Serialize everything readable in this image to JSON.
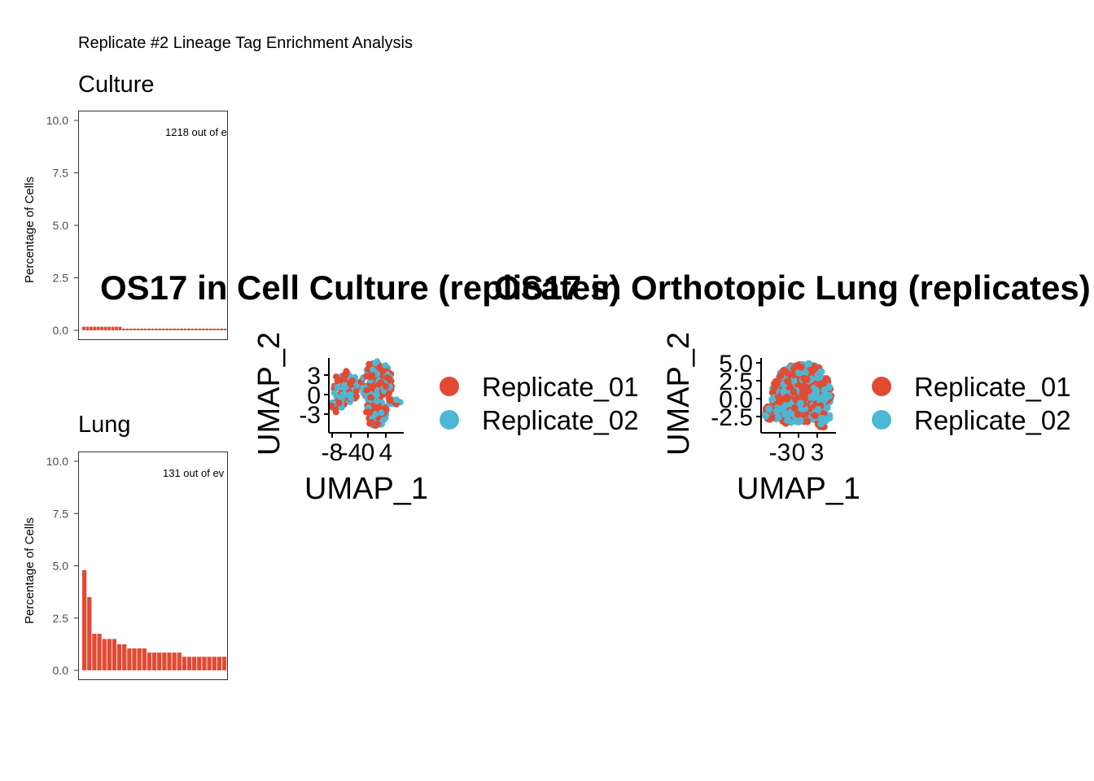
{
  "page": {
    "title": "Replicate #2 Lineage Tag Enrichment Analysis"
  },
  "colors": {
    "bar": "#E24A33",
    "replicate_01": "#E24A33",
    "replicate_02": "#4DB8D4",
    "panel_border": "#333333"
  },
  "chart_data": [
    {
      "type": "bar",
      "title": "Culture",
      "ylabel": "Percentage of Cells",
      "xlabel": "",
      "ylim": [
        0,
        10
      ],
      "yticks": [
        "0.0",
        "2.5",
        "5.0",
        "7.5",
        "10.0"
      ],
      "annotation": "1218 out of e",
      "values": [
        0.17,
        0.17,
        0.17,
        0.17,
        0.17,
        0.17,
        0.17,
        0.17,
        0.17,
        0.17,
        0.17,
        0.08,
        0.08,
        0.08,
        0.08,
        0.08,
        0.08,
        0.08,
        0.08,
        0.08,
        0.08,
        0.08,
        0.08,
        0.08,
        0.08,
        0.08,
        0.08,
        0.08,
        0.08,
        0.08,
        0.08,
        0.08,
        0.08,
        0.08,
        0.08,
        0.08,
        0.08,
        0.08,
        0.08,
        0.08
      ]
    },
    {
      "type": "bar",
      "title": "Lung",
      "ylabel": "Percentage of Cells",
      "xlabel": "",
      "ylim": [
        0,
        10
      ],
      "yticks": [
        "0.0",
        "2.5",
        "5.0",
        "7.5",
        "10.0"
      ],
      "annotation": "131 out of ev",
      "values": [
        4.8,
        3.5,
        1.75,
        1.75,
        1.5,
        1.5,
        1.5,
        1.25,
        1.25,
        1.05,
        1.05,
        1.05,
        1.05,
        0.85,
        0.85,
        0.85,
        0.85,
        0.85,
        0.85,
        0.85,
        0.65,
        0.65,
        0.65,
        0.65,
        0.65,
        0.65,
        0.65,
        0.65,
        0.65
      ]
    },
    {
      "type": "scatter",
      "title": "OS17 in Cell Culture (replicates)",
      "xlabel": "UMAP_1",
      "ylabel": "UMAP_2",
      "xticks": [
        "-8",
        "-4",
        "0",
        "4"
      ],
      "yticks": [
        "3",
        "0",
        "-3"
      ],
      "series": [
        {
          "name": "Replicate_01"
        },
        {
          "name": "Replicate_02"
        }
      ]
    },
    {
      "type": "scatter",
      "title": "OS17 in Orthotopic Lung (replicates)",
      "xlabel": "UMAP_1",
      "ylabel": "UMAP_2",
      "xticks": [
        "-3",
        "0",
        "3"
      ],
      "yticks": [
        "5.0",
        "2.5",
        "0.0",
        "-2.5"
      ],
      "series": [
        {
          "name": "Replicate_01"
        },
        {
          "name": "Replicate_02"
        }
      ]
    }
  ]
}
